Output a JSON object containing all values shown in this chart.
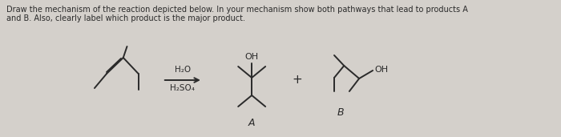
{
  "bg_color": "#d4d0cb",
  "text_color": "#2a2a2a",
  "instruction_line1": "Draw the mechanism of the reaction depicted below. In your mechanism show both pathways that lead to products A",
  "instruction_line2": "and B. Also, clearly label which product is the major product.",
  "reagent_top": "H₂O",
  "reagent_bottom": "H₂SO₄",
  "label_A": "A",
  "label_B": "B",
  "plus_sign": "+",
  "label_OH_A": "OH",
  "label_OH_B": "OH"
}
